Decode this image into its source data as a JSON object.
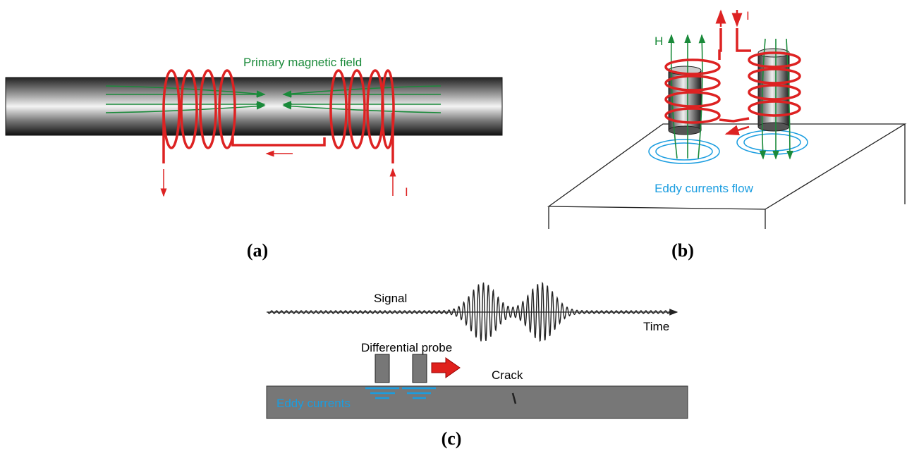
{
  "panels": {
    "a": {
      "label": "(a)",
      "field_label": "Primary magnetic field",
      "current_label": "I"
    },
    "b": {
      "label": "(b)",
      "field_label": "H",
      "current_label": "I",
      "eddy_label": "Eddy currents flow"
    },
    "c": {
      "label": "(c)",
      "signal_label": "Signal",
      "time_label": "Time",
      "probe_label": "Differential probe",
      "crack_label": "Crack",
      "eddy_label": "Eddy currents"
    }
  }
}
